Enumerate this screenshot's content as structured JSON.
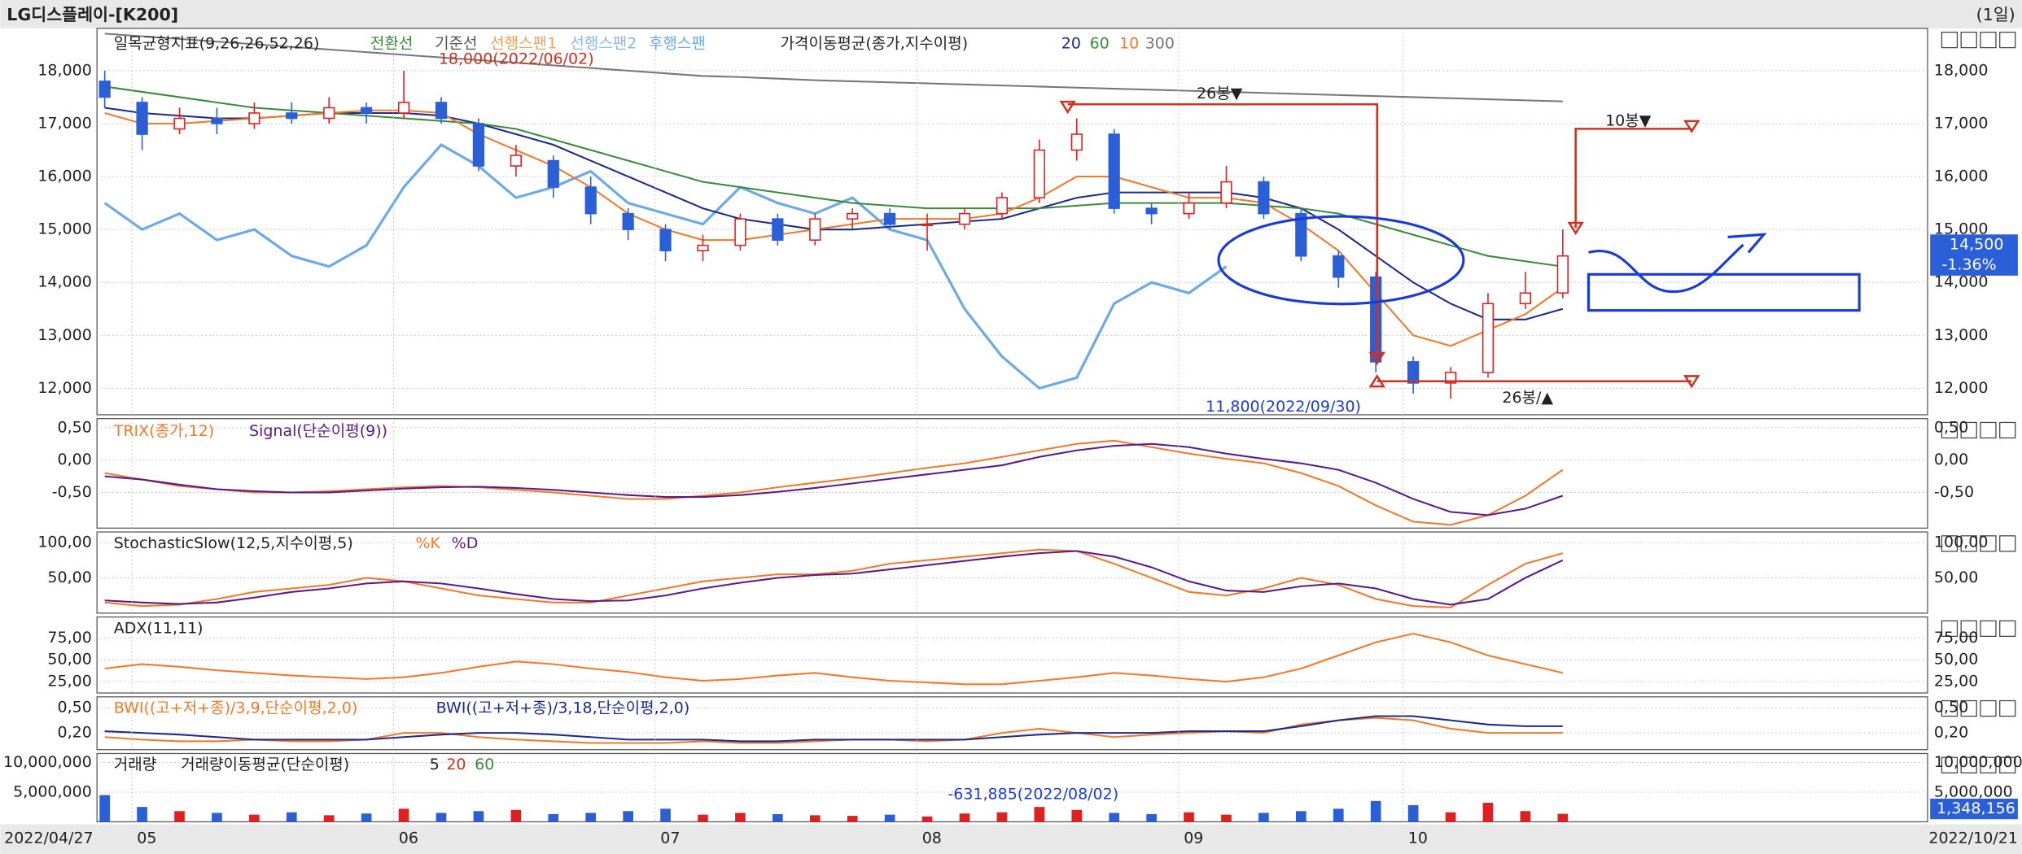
{
  "header": {
    "title": "LG디스플레이-[K200]",
    "period": "(1일)"
  },
  "footer": {
    "start": "2022/04/27",
    "end": "2022/10/21"
  },
  "chart_data": [
    {
      "type": "candlestick",
      "legend": [
        "일목균형지표(9,26,26,52,26)",
        "전환선",
        "기준선",
        "선행스팬1",
        "선행스팬2",
        "가격이동평균(종가,지수이평)"
      ],
      "up_color": "#e02020",
      "down_color": "#2a5fd8",
      "open": [
        17800,
        17400,
        16900,
        17100,
        17000,
        17200,
        17100,
        17300,
        17200,
        17400,
        17000,
        16200,
        16300,
        15800,
        15300,
        15000,
        14600,
        14700,
        15200,
        14800,
        15200,
        15300,
        15100,
        15100,
        15300,
        15600,
        16500,
        16800,
        15400,
        15300,
        15500,
        15900,
        15300,
        14500,
        14100,
        12500,
        12100,
        12300,
        13600,
        13800
      ],
      "high": [
        18000,
        17500,
        17300,
        17300,
        17400,
        17400,
        17500,
        17400,
        18000,
        17500,
        17100,
        16600,
        16400,
        16000,
        15400,
        15100,
        14900,
        15300,
        15300,
        15300,
        15400,
        15400,
        15300,
        15400,
        15700,
        16700,
        17100,
        16900,
        15500,
        15700,
        16200,
        16000,
        15400,
        14600,
        14200,
        12600,
        12400,
        13800,
        14200,
        15000
      ],
      "low": [
        17300,
        16500,
        16800,
        16800,
        16900,
        17000,
        17000,
        17000,
        17100,
        17000,
        16100,
        16000,
        15600,
        15100,
        14800,
        14400,
        14400,
        14600,
        14700,
        14700,
        15000,
        15000,
        14600,
        15000,
        15200,
        15500,
        16300,
        15300,
        15100,
        15200,
        15400,
        15200,
        14400,
        13900,
        12300,
        11900,
        11800,
        12200,
        13500,
        13700
      ],
      "close": [
        17500,
        16800,
        17100,
        17000,
        17200,
        17100,
        17300,
        17200,
        17400,
        17100,
        16200,
        16400,
        15800,
        15300,
        15000,
        14600,
        14700,
        15200,
        14800,
        15200,
        15300,
        15100,
        15100,
        15300,
        15600,
        16500,
        16800,
        15400,
        15300,
        15500,
        15900,
        15300,
        14500,
        14100,
        12500,
        12100,
        12300,
        13600,
        13800,
        14500
      ],
      "series": [
        {
          "name": "후행스팬",
          "color": "#6aaae8",
          "values": [
            15500,
            15000,
            15300,
            14800,
            15000,
            14500,
            14300,
            14700,
            15800,
            16600,
            16200,
            15600,
            15800,
            16100,
            15500,
            15300,
            15100,
            15800,
            15500,
            15300,
            15600,
            15000,
            14800,
            13500,
            12600,
            12000,
            12200,
            13600,
            14000,
            13800,
            14300,
            null,
            null,
            null,
            null,
            null,
            null,
            null,
            null,
            null
          ]
        },
        {
          "name": "20",
          "color": "#1c2a8c",
          "values": [
            17300,
            17200,
            17150,
            17100,
            17100,
            17150,
            17200,
            17200,
            17200,
            17150,
            17000,
            16800,
            16600,
            16300,
            16000,
            15700,
            15400,
            15200,
            15100,
            15000,
            15000,
            15050,
            15100,
            15150,
            15200,
            15400,
            15600,
            15700,
            15700,
            15700,
            15700,
            15600,
            15400,
            15000,
            14500,
            14000,
            13600,
            13300,
            13300,
            13500
          ]
        },
        {
          "name": "60",
          "color": "#3a8a3a",
          "values": [
            17700,
            17600,
            17500,
            17400,
            17300,
            17250,
            17200,
            17150,
            17100,
            17050,
            17000,
            16900,
            16700,
            16500,
            16300,
            16100,
            15900,
            15800,
            15700,
            15600,
            15500,
            15450,
            15400,
            15400,
            15400,
            15400,
            15450,
            15500,
            15500,
            15500,
            15500,
            15450,
            15400,
            15300,
            15100,
            14900,
            14700,
            14500,
            14400,
            14300
          ]
        },
        {
          "name": "10",
          "color": "#f07a2a",
          "values": [
            17200,
            17000,
            17000,
            17050,
            17100,
            17150,
            17200,
            17250,
            17250,
            17200,
            16800,
            16500,
            16200,
            15800,
            15300,
            15000,
            14800,
            14800,
            14900,
            15000,
            15100,
            15200,
            15200,
            15200,
            15300,
            15600,
            16000,
            16000,
            15800,
            15600,
            15600,
            15500,
            15100,
            14600,
            13800,
            13000,
            12800,
            13100,
            13400,
            13900
          ]
        },
        {
          "name": "300",
          "color": "#777777",
          "values": [
            18700,
            18650,
            18600,
            18550,
            18500,
            18450,
            18400,
            18350,
            18300,
            18250,
            18200,
            18150,
            18100,
            18050,
            18000,
            17950,
            17900,
            17880,
            17850,
            17820,
            17800,
            17780,
            17760,
            17740,
            17720,
            17700,
            17680,
            17660,
            17640,
            17620,
            17600,
            17580,
            17560,
            17540,
            17520,
            17500,
            17480,
            17460,
            17440,
            17420
          ]
        }
      ],
      "ylim": [
        11500,
        18800
      ],
      "yticks": [
        {
          "value": 12000,
          "label": "12,000"
        },
        {
          "value": 13000,
          "label": "13,000"
        },
        {
          "value": 14000,
          "label": "14,000"
        },
        {
          "value": 15000,
          "label": "15,000"
        },
        {
          "value": 16000,
          "label": "16,000"
        },
        {
          "value": 17000,
          "label": "17,000"
        },
        {
          "value": 18000,
          "label": "18,000"
        }
      ],
      "annotations": [
        "18,000(2022/06/02)",
        "11,800(2022/09/30)",
        "26봉▼",
        "10봉▼",
        "26봉/▲"
      ],
      "last_price": "14,500",
      "change": "-1.36%"
    },
    {
      "type": "line",
      "series": [
        {
          "name": "TRIX(종가,12)",
          "color": "#f07a2a",
          "values": [
            -0.2,
            -0.3,
            -0.4,
            -0.45,
            -0.5,
            -0.5,
            -0.48,
            -0.45,
            -0.42,
            -0.4,
            -0.42,
            -0.46,
            -0.5,
            -0.55,
            -0.6,
            -0.6,
            -0.55,
            -0.5,
            -0.42,
            -0.35,
            -0.28,
            -0.2,
            -0.12,
            -0.05,
            0.05,
            0.15,
            0.25,
            0.3,
            0.2,
            0.1,
            0.02,
            -0.05,
            -0.2,
            -0.4,
            -0.7,
            -0.95,
            -1.0,
            -0.85,
            -0.55,
            -0.15
          ]
        },
        {
          "name": "Signal(단순이평(9))",
          "color": "#5a1a8a",
          "values": [
            -0.25,
            -0.3,
            -0.38,
            -0.45,
            -0.48,
            -0.5,
            -0.5,
            -0.47,
            -0.44,
            -0.42,
            -0.41,
            -0.43,
            -0.46,
            -0.5,
            -0.54,
            -0.57,
            -0.57,
            -0.54,
            -0.49,
            -0.43,
            -0.36,
            -0.29,
            -0.22,
            -0.15,
            -0.08,
            0.05,
            0.15,
            0.22,
            0.25,
            0.2,
            0.1,
            0.02,
            -0.05,
            -0.15,
            -0.35,
            -0.6,
            -0.8,
            -0.85,
            -0.75,
            -0.55
          ]
        }
      ],
      "ylim": [
        -1.05,
        0.64
      ],
      "yticks": [
        {
          "value": 0.5,
          "label": "0,50"
        },
        {
          "value": 0,
          "label": "0,00"
        },
        {
          "value": -0.5,
          "label": "-0,50"
        }
      ]
    },
    {
      "type": "line",
      "legend": [
        "StochasticSlow(12,5,지수이평,5)"
      ],
      "series": [
        {
          "name": "%K",
          "color": "#f07a2a",
          "values": [
            15,
            10,
            12,
            20,
            30,
            35,
            40,
            50,
            45,
            35,
            25,
            20,
            15,
            15,
            25,
            35,
            45,
            50,
            55,
            55,
            60,
            70,
            75,
            80,
            85,
            90,
            88,
            70,
            50,
            30,
            25,
            35,
            50,
            40,
            20,
            10,
            8,
            40,
            70,
            85
          ]
        },
        {
          "name": "%D",
          "color": "#5a1a8a",
          "values": [
            18,
            15,
            13,
            15,
            22,
            30,
            35,
            42,
            45,
            42,
            35,
            27,
            20,
            17,
            18,
            25,
            35,
            43,
            50,
            54,
            56,
            62,
            68,
            74,
            80,
            85,
            88,
            80,
            65,
            45,
            32,
            30,
            38,
            42,
            35,
            20,
            12,
            20,
            50,
            75
          ]
        }
      ],
      "ylim": [
        0,
        115
      ],
      "yticks": [
        {
          "value": 100,
          "label": "100,00"
        },
        {
          "value": 50,
          "label": "50,00"
        }
      ]
    },
    {
      "type": "line",
      "series": [
        {
          "name": "ADX(11,11)",
          "color": "#f07a2a",
          "values": [
            40,
            45,
            42,
            38,
            35,
            32,
            30,
            28,
            30,
            35,
            42,
            48,
            45,
            40,
            36,
            30,
            26,
            28,
            32,
            35,
            30,
            26,
            24,
            22,
            22,
            26,
            30,
            35,
            32,
            28,
            25,
            30,
            40,
            55,
            70,
            80,
            70,
            55,
            45,
            35
          ]
        }
      ],
      "ylim": [
        12,
        99
      ],
      "yticks": [
        {
          "value": 75,
          "label": "75,00"
        },
        {
          "value": 50,
          "label": "50,00"
        },
        {
          "value": 25,
          "label": "25,00"
        }
      ]
    },
    {
      "type": "line",
      "series": [
        {
          "name": "BWI((고+저+종)/3,9,단순이평,2,0)",
          "color": "#f07a2a",
          "values": [
            0.15,
            0.12,
            0.1,
            0.1,
            0.12,
            0.1,
            0.1,
            0.12,
            0.2,
            0.2,
            0.15,
            0.12,
            0.1,
            0.08,
            0.08,
            0.08,
            0.1,
            0.08,
            0.08,
            0.1,
            0.12,
            0.12,
            0.1,
            0.12,
            0.2,
            0.25,
            0.2,
            0.15,
            0.18,
            0.2,
            0.22,
            0.2,
            0.3,
            0.35,
            0.38,
            0.35,
            0.25,
            0.2,
            0.2,
            0.2
          ]
        },
        {
          "name": "BWI((고+저+종)/3,18,단순이평,2,0)",
          "color": "#1c2a8c",
          "values": [
            0.22,
            0.2,
            0.18,
            0.15,
            0.12,
            0.12,
            0.12,
            0.12,
            0.15,
            0.18,
            0.2,
            0.2,
            0.18,
            0.15,
            0.12,
            0.12,
            0.12,
            0.1,
            0.1,
            0.12,
            0.12,
            0.12,
            0.12,
            0.12,
            0.15,
            0.18,
            0.2,
            0.2,
            0.2,
            0.22,
            0.22,
            0.22,
            0.28,
            0.35,
            0.4,
            0.4,
            0.35,
            0.3,
            0.28,
            0.28
          ]
        }
      ],
      "ylim": [
        0,
        0.63
      ],
      "yticks": [
        {
          "value": 0.5,
          "label": "0,50"
        },
        {
          "value": 0.2,
          "label": "0,20"
        }
      ]
    },
    {
      "type": "bar",
      "legend": [
        "거래량이동평균(단순이평)",
        "5",
        "20",
        "60"
      ],
      "categories": [
        null,
        "05",
        null,
        null,
        null,
        null,
        null,
        null,
        "06",
        null,
        null,
        null,
        null,
        null,
        null,
        "07",
        null,
        null,
        null,
        null,
        null,
        null,
        "08",
        null,
        null,
        null,
        null,
        null,
        null,
        "09",
        null,
        null,
        null,
        null,
        null,
        "10",
        null,
        null,
        null,
        null
      ],
      "series": [
        {
          "name": "거래량",
          "values": [
            4500000,
            2500000,
            1800000,
            1500000,
            1200000,
            1600000,
            1100000,
            1400000,
            2200000,
            1500000,
            1800000,
            2000000,
            1300000,
            1500000,
            1800000,
            2200000,
            1200000,
            1500000,
            1300000,
            1100000,
            1000000,
            1200000,
            900000,
            1400000,
            1600000,
            2500000,
            2000000,
            1500000,
            1300000,
            1600000,
            1200000,
            1500000,
            1800000,
            2200000,
            3500000,
            2800000,
            1600000,
            3200000,
            1800000,
            1348156
          ]
        }
      ],
      "ylim": [
        0,
        11500000
      ],
      "yticks": [
        {
          "value": 5000000,
          "label": "5,000,000"
        },
        {
          "value": 10000000,
          "label": "10,000,000"
        }
      ],
      "annotations": [
        "-631,885(2022/08/02)"
      ],
      "last_volume": "1,348,156"
    }
  ]
}
